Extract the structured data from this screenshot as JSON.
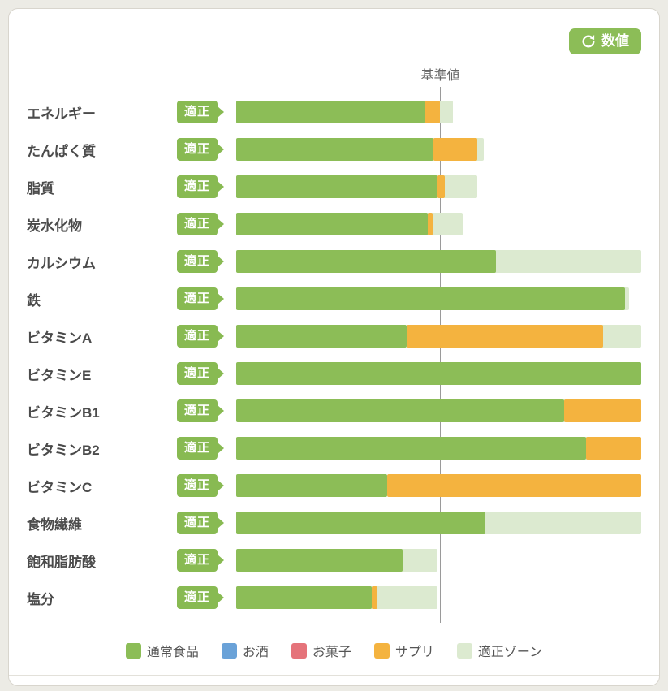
{
  "page": {
    "background": "#ecebe5"
  },
  "header": {
    "view_toggle": {
      "label": "数値",
      "icon": "refresh-icon",
      "color": "#8cbd57"
    }
  },
  "chart_data": {
    "type": "bar",
    "orientation": "horizontal",
    "value_unit": "percent_of_chart_width",
    "title": "",
    "reference_line": {
      "label": "基準値",
      "position_pct": 50.4,
      "color": "#9a9a9a"
    },
    "colors": {
      "normal_food": "#8cbd57",
      "alcohol": "#6aa2d8",
      "sweets": "#e5737a",
      "supplement": "#f4b33f",
      "zone": "#dcead0",
      "badge": "#88ba52"
    },
    "legend": [
      {
        "key": "normal_food",
        "label": "通常食品"
      },
      {
        "key": "alcohol",
        "label": "お酒"
      },
      {
        "key": "sweets",
        "label": "お菓子"
      },
      {
        "key": "supplement",
        "label": "サプリ"
      },
      {
        "key": "zone",
        "label": "適正ゾーン"
      }
    ],
    "rows": [
      {
        "label": "エネルギー",
        "status": "適正",
        "normal_food_pct": 46.4,
        "supplement_pct": 4.0,
        "zone_start_pct": 45.6,
        "zone_end_pct": 53.6
      },
      {
        "label": "たんぱく質",
        "status": "適正",
        "normal_food_pct": 48.6,
        "supplement_pct": 11.0,
        "zone_start_pct": 39.6,
        "zone_end_pct": 61.2
      },
      {
        "label": "脂質",
        "status": "適正",
        "normal_food_pct": 49.6,
        "supplement_pct": 2.0,
        "zone_start_pct": 39.6,
        "zone_end_pct": 59.6
      },
      {
        "label": "炭水化物",
        "status": "適正",
        "normal_food_pct": 47.2,
        "supplement_pct": 1.2,
        "zone_start_pct": 45.6,
        "zone_end_pct": 56.0
      },
      {
        "label": "カルシウム",
        "status": "適正",
        "normal_food_pct": 64.2,
        "supplement_pct": 0,
        "zone_start_pct": 49.0,
        "zone_end_pct": 100
      },
      {
        "label": "鉄",
        "status": "適正",
        "normal_food_pct": 96.0,
        "supplement_pct": 0,
        "zone_start_pct": 50.4,
        "zone_end_pct": 97.0
      },
      {
        "label": "ビタミンA",
        "status": "適正",
        "normal_food_pct": 42.0,
        "supplement_pct": 48.6,
        "zone_start_pct": 50.4,
        "zone_end_pct": 100
      },
      {
        "label": "ビタミンE",
        "status": "適正",
        "normal_food_pct": 100,
        "supplement_pct": 0,
        "zone_start_pct": 50.4,
        "zone_end_pct": 100
      },
      {
        "label": "ビタミンB1",
        "status": "適正",
        "normal_food_pct": 81.0,
        "supplement_pct": 19.0,
        "zone_start_pct": 50.4,
        "zone_end_pct": 100
      },
      {
        "label": "ビタミンB2",
        "status": "適正",
        "normal_food_pct": 86.3,
        "supplement_pct": 13.7,
        "zone_start_pct": 50.4,
        "zone_end_pct": 100
      },
      {
        "label": "ビタミンC",
        "status": "適正",
        "normal_food_pct": 37.2,
        "supplement_pct": 62.8,
        "zone_start_pct": 50.4,
        "zone_end_pct": 100
      },
      {
        "label": "食物繊維",
        "status": "適正",
        "normal_food_pct": 61.5,
        "supplement_pct": 0,
        "zone_start_pct": 50.4,
        "zone_end_pct": 100
      },
      {
        "label": "飽和脂肪酸",
        "status": "適正",
        "normal_food_pct": 41.0,
        "supplement_pct": 0,
        "zone_start_pct": 0,
        "zone_end_pct": 49.6
      },
      {
        "label": "塩分",
        "status": "適正",
        "normal_food_pct": 33.4,
        "supplement_pct": 1.4,
        "zone_start_pct": 0,
        "zone_end_pct": 49.6
      }
    ]
  }
}
